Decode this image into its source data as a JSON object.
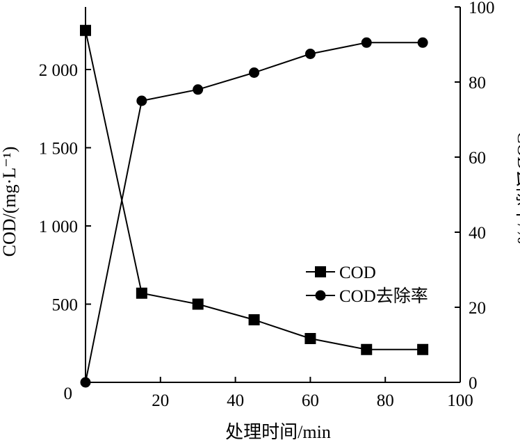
{
  "chart_data": {
    "type": "line",
    "title": "",
    "xlabel": "处理时间/min",
    "ylabel_left": "COD/(mg·L⁻¹)",
    "ylabel_right": "COD去除率/%",
    "x": [
      0,
      15,
      30,
      45,
      60,
      75,
      90
    ],
    "xlim": [
      0,
      100
    ],
    "ylim_left": [
      0,
      2400
    ],
    "ylim_right": [
      0,
      100
    ],
    "x_ticks": [
      "20",
      "40",
      "60",
      "80",
      "100"
    ],
    "y_left_ticks": [
      "0",
      "500",
      "1 000",
      "1 500",
      "2 000"
    ],
    "y_right_ticks": [
      "0",
      "20",
      "40",
      "60",
      "80",
      "100"
    ],
    "grid": false,
    "legend_position": "center-right",
    "series": [
      {
        "name": "COD",
        "axis": "left",
        "marker": "square",
        "values": [
          2250,
          570,
          500,
          400,
          280,
          210,
          210
        ]
      },
      {
        "name": "COD去除率",
        "axis": "right",
        "marker": "circle",
        "values": [
          0,
          75,
          78,
          82.5,
          87.5,
          90.5,
          90.5
        ]
      }
    ],
    "colors": {
      "line": "#000000",
      "background": "#ffffff"
    }
  }
}
